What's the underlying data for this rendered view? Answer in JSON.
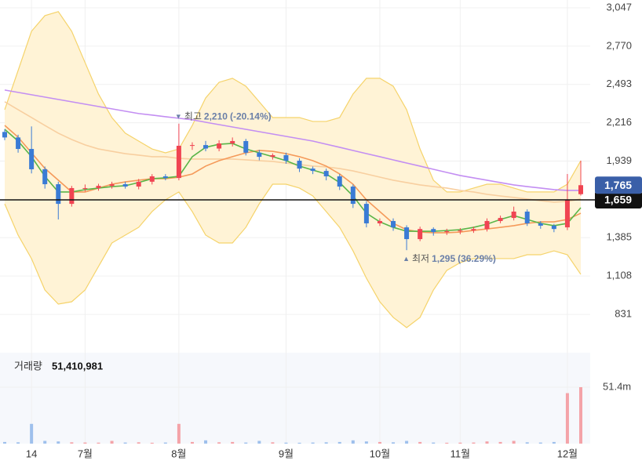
{
  "chart_data": [
    {
      "type": "candlestick",
      "ylim": [
        667,
        3104
      ],
      "yticks": [
        {
          "value": 831,
          "label": "831"
        },
        {
          "value": 1108,
          "label": "1,108"
        },
        {
          "value": 1385,
          "label": "1,385"
        },
        {
          "value": 1939,
          "label": "1,939"
        },
        {
          "value": 2216,
          "label": "2,216"
        },
        {
          "value": 2493,
          "label": "2,493"
        },
        {
          "value": 2770,
          "label": "2,770"
        },
        {
          "value": 3047,
          "label": "3,047"
        }
      ],
      "grid": true,
      "up_color": "#f04452",
      "down_color": "#3a7bd5",
      "open": [
        2150,
        2110,
        2027,
        1880,
        1772,
        1630,
        1744,
        1744,
        1760,
        1772,
        1755,
        1790,
        1829,
        1817,
        2050,
        2055,
        2030,
        2067,
        2084,
        2000,
        1970,
        1982,
        1942,
        1885,
        1868,
        1829,
        1755,
        1630,
        1489,
        1506,
        1460,
        1375,
        1448,
        1426,
        1432,
        1437,
        1448,
        1506,
        1528,
        1574,
        1489,
        1472,
        1460,
        1700
      ],
      "high": [
        2170,
        2130,
        2190,
        1900,
        1790,
        1760,
        1770,
        1775,
        1790,
        1790,
        1810,
        1845,
        1845,
        2210,
        2075,
        2085,
        2090,
        2110,
        2100,
        2020,
        1995,
        2000,
        1960,
        1900,
        1885,
        1845,
        1770,
        1650,
        1525,
        1525,
        1475,
        1465,
        1460,
        1450,
        1455,
        1465,
        1525,
        1545,
        1610,
        1590,
        1505,
        1485,
        1846,
        1942
      ],
      "low": [
        2090,
        2000,
        1850,
        1740,
        1517,
        1610,
        1720,
        1725,
        1740,
        1740,
        1735,
        1770,
        1800,
        1800,
        2020,
        2010,
        2010,
        2045,
        1980,
        1945,
        1950,
        1920,
        1860,
        1845,
        1800,
        1730,
        1600,
        1460,
        1470,
        1435,
        1295,
        1360,
        1400,
        1405,
        1410,
        1420,
        1430,
        1490,
        1510,
        1470,
        1450,
        1425,
        1440,
        1690
      ],
      "close": [
        2110,
        2027,
        1880,
        1772,
        1630,
        1744,
        1744,
        1760,
        1772,
        1755,
        1790,
        1829,
        1817,
        2050,
        2055,
        2030,
        2067,
        2084,
        2000,
        1970,
        1982,
        1942,
        1885,
        1868,
        1829,
        1755,
        1630,
        1489,
        1506,
        1460,
        1375,
        1448,
        1426,
        1432,
        1437,
        1448,
        1506,
        1528,
        1574,
        1489,
        1472,
        1448,
        1659,
        1765
      ],
      "band": {
        "fill": "#fff3d6",
        "stroke": "#f5d36a",
        "upper": [
          2311,
          2594,
          2878,
          2991,
          3020,
          2878,
          2651,
          2424,
          2254,
          2141,
          2084,
          2027,
          1999,
          2027,
          2197,
          2396,
          2509,
          2538,
          2481,
          2368,
          2254,
          2254,
          2254,
          2226,
          2226,
          2254,
          2424,
          2538,
          2538,
          2481,
          2311,
          2027,
          1801,
          1716,
          1716,
          1744,
          1772,
          1772,
          1744,
          1716,
          1716,
          1716,
          1772,
          1942
        ],
        "lower": [
          1630,
          1404,
          1234,
          1007,
          905,
          922,
          1007,
          1177,
          1347,
          1404,
          1460,
          1574,
          1659,
          1716,
          1574,
          1404,
          1347,
          1347,
          1460,
          1630,
          1772,
          1772,
          1744,
          1687,
          1574,
          1460,
          1290,
          1092,
          922,
          809,
          735,
          809,
          1007,
          1149,
          1205,
          1234,
          1234,
          1234,
          1234,
          1262,
          1262,
          1290,
          1262,
          1120
        ]
      },
      "lines": [
        {
          "color": "#c38ef2",
          "values": [
            2453,
            2436,
            2419,
            2402,
            2385,
            2368,
            2351,
            2334,
            2317,
            2300,
            2283,
            2272,
            2260,
            2249,
            2238,
            2220,
            2203,
            2186,
            2169,
            2152,
            2135,
            2118,
            2101,
            2084,
            2061,
            2039,
            2016,
            1993,
            1971,
            1948,
            1925,
            1903,
            1880,
            1857,
            1835,
            1818,
            1801,
            1784,
            1767,
            1755,
            1744,
            1733,
            1727,
            1727
          ]
        },
        {
          "color": "#f8cfa0",
          "values": [
            2368,
            2311,
            2254,
            2197,
            2141,
            2095,
            2056,
            2027,
            2010,
            1993,
            1982,
            1971,
            1971,
            1959,
            1954,
            1954,
            1954,
            1954,
            1948,
            1942,
            1937,
            1925,
            1914,
            1903,
            1897,
            1885,
            1868,
            1846,
            1823,
            1801,
            1784,
            1767,
            1755,
            1744,
            1727,
            1716,
            1699,
            1687,
            1676,
            1665,
            1653,
            1642,
            1648,
            1665
          ]
        },
        {
          "color": "#f59a5a",
          "values": [
            2197,
            2112,
            1999,
            1886,
            1801,
            1716,
            1716,
            1744,
            1772,
            1789,
            1801,
            1812,
            1812,
            1823,
            1846,
            1903,
            1942,
            1971,
            1999,
            2016,
            2010,
            1993,
            1971,
            1942,
            1903,
            1846,
            1772,
            1659,
            1574,
            1489,
            1443,
            1426,
            1421,
            1421,
            1426,
            1438,
            1449,
            1460,
            1472,
            1489,
            1500,
            1500,
            1517,
            1562
          ]
        },
        {
          "color": "#59b548",
          "values": [
            2169,
            2084,
            1971,
            1829,
            1716,
            1716,
            1733,
            1744,
            1755,
            1761,
            1784,
            1812,
            1818,
            1829,
            1971,
            2039,
            2061,
            2067,
            2027,
            1999,
            1971,
            1942,
            1903,
            1874,
            1846,
            1784,
            1687,
            1562,
            1500,
            1460,
            1432,
            1432,
            1432,
            1437,
            1443,
            1460,
            1483,
            1517,
            1545,
            1517,
            1489,
            1472,
            1489,
            1602
          ]
        }
      ],
      "reference_line": {
        "value": 1659,
        "label": "1,659",
        "color": "#111111"
      },
      "current_price": {
        "value": 1765,
        "label": "1,765",
        "color": "#3a5fa8"
      },
      "annotations": [
        {
          "index": 13,
          "marker": "▼",
          "text": "최고",
          "value": 2210,
          "label": "2,210",
          "change": "(-20.14%)"
        },
        {
          "index": 30,
          "marker": "▲",
          "text": "최저",
          "value": 1295,
          "label": "1,295",
          "change": "(36.29%)"
        }
      ]
    },
    {
      "type": "bar",
      "title": "거래량",
      "title_value": "51,410,981",
      "categories": [
        null,
        null,
        "14",
        null,
        null,
        null,
        "7월",
        null,
        null,
        null,
        null,
        null,
        null,
        "8월",
        null,
        null,
        null,
        null,
        null,
        null,
        null,
        "9월",
        null,
        null,
        null,
        null,
        null,
        null,
        "10월",
        null,
        null,
        null,
        null,
        null,
        "11월",
        null,
        null,
        null,
        null,
        null,
        null,
        null,
        "12월",
        null
      ],
      "values": [
        1500000,
        1200000,
        18000000,
        2500000,
        2000000,
        1200000,
        1000000,
        900000,
        2500000,
        1000000,
        1200000,
        800000,
        1000000,
        18000000,
        1500000,
        3000000,
        1200000,
        1500000,
        1000000,
        2500000,
        1200000,
        900000,
        800000,
        1000000,
        1200000,
        1500000,
        3000000,
        2000000,
        1500000,
        1200000,
        2500000,
        1500000,
        1000000,
        800000,
        900000,
        1000000,
        2000000,
        1500000,
        2500000,
        1200000,
        1000000,
        1500000,
        46000000,
        51410981
      ],
      "ylim": [
        0,
        82830000
      ],
      "yticks": [
        {
          "value": 51410981,
          "label": "51.4m"
        }
      ],
      "up_color": "#f4a3a8",
      "down_color": "#9ec0ec"
    }
  ]
}
